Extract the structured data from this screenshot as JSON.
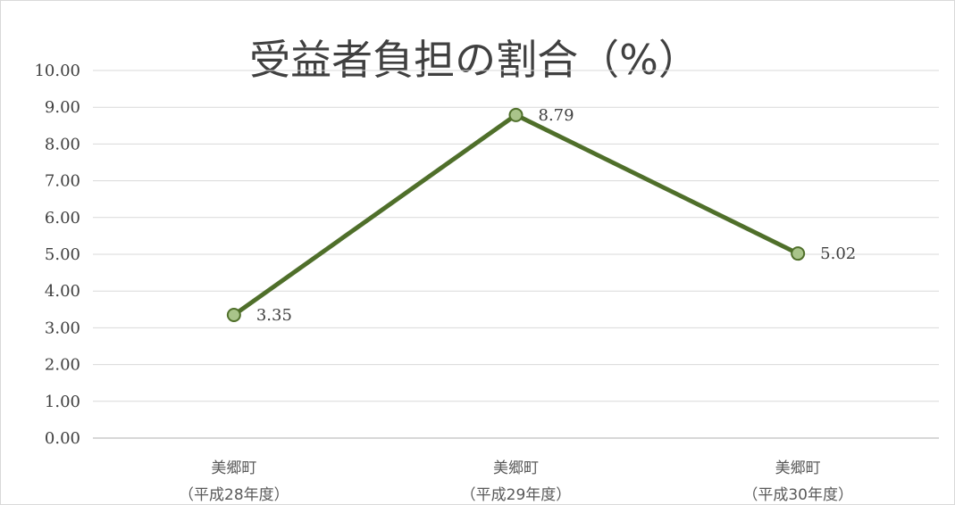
{
  "chart_data": {
    "type": "line",
    "title": "受益者負担の割合（%）",
    "categories": [
      [
        "美郷町",
        "（平成28年度）"
      ],
      [
        "美郷町",
        "（平成29年度）"
      ],
      [
        "美郷町",
        "（平成30年度）"
      ]
    ],
    "series": [
      {
        "values": [
          3.35,
          8.79,
          5.02
        ],
        "color": "#4f6f2a",
        "marker_fill": "#a9c48a"
      }
    ],
    "data_labels": [
      "3.35",
      "8.79",
      "5.02"
    ],
    "y_ticks": [
      "0.00",
      "1.00",
      "2.00",
      "3.00",
      "4.00",
      "5.00",
      "6.00",
      "7.00",
      "8.00",
      "9.00",
      "10.00"
    ],
    "ylim": [
      0,
      10
    ],
    "grid": true,
    "legend": "none"
  }
}
